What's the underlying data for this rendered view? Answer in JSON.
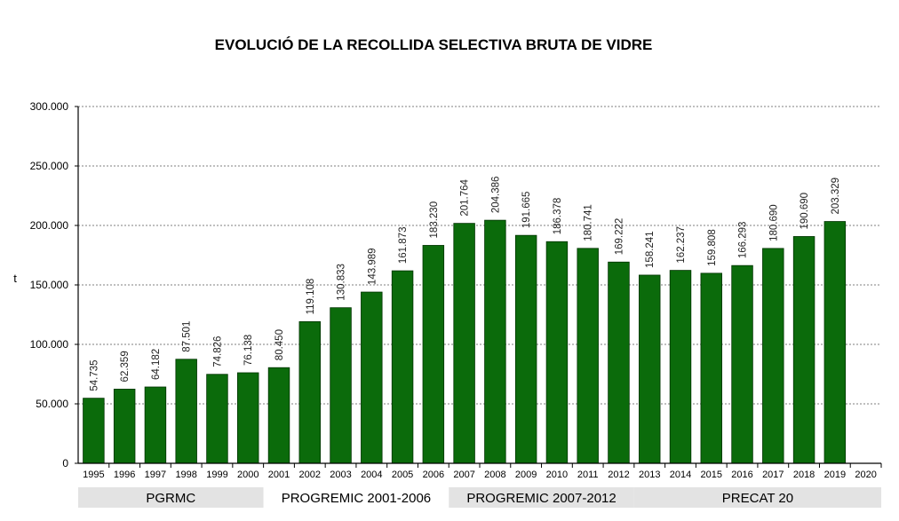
{
  "chart_data": {
    "type": "bar",
    "title": "EVOLUCIÓ DE LA RECOLLIDA SELECTIVA BRUTA DE VIDRE",
    "ylabel": "t",
    "xlabel": "",
    "ylim": [
      0,
      300000
    ],
    "yticks": [
      0,
      50000,
      100000,
      150000,
      200000,
      250000,
      300000
    ],
    "ytick_labels": [
      "0",
      "50.000",
      "100.000",
      "150.000",
      "200.000",
      "250.000",
      "300.000"
    ],
    "grid": true,
    "bar_color": "#0b6b0b",
    "categories": [
      "1995",
      "1996",
      "1997",
      "1998",
      "1999",
      "2000",
      "2001",
      "2002",
      "2003",
      "2004",
      "2005",
      "2006",
      "2007",
      "2008",
      "2009",
      "2010",
      "2011",
      "2012",
      "2013",
      "2014",
      "2015",
      "2016",
      "2017",
      "2018",
      "2019",
      "2020"
    ],
    "values": [
      54735,
      62359,
      64182,
      87501,
      74826,
      76138,
      80450,
      119108,
      130833,
      143989,
      161873,
      183230,
      201764,
      204386,
      191665,
      186378,
      180741,
      169222,
      158241,
      162237,
      159808,
      166293,
      180690,
      190690,
      203329,
      null
    ],
    "value_labels": [
      "54.735",
      "62.359",
      "64.182",
      "87.501",
      "74.826",
      "76.138",
      "80.450",
      "119.108",
      "130.833",
      "143.989",
      "161.873",
      "183.230",
      "201.764",
      "204.386",
      "191.665",
      "186.378",
      "180.741",
      "169.222",
      "158.241",
      "162.237",
      "159.808",
      "166.293",
      "180.690",
      "190.690",
      "203.329",
      ""
    ],
    "periods": [
      {
        "label": "PGRMC",
        "start": 0,
        "end": 5,
        "shaded": true
      },
      {
        "label": "PROGREMIC 2001-2006",
        "start": 6,
        "end": 11,
        "shaded": false
      },
      {
        "label": "PROGREMIC 2007-2012",
        "start": 12,
        "end": 17,
        "shaded": true
      },
      {
        "label": "PRECAT 20",
        "start": 18,
        "end": 25,
        "shaded": true
      }
    ]
  }
}
